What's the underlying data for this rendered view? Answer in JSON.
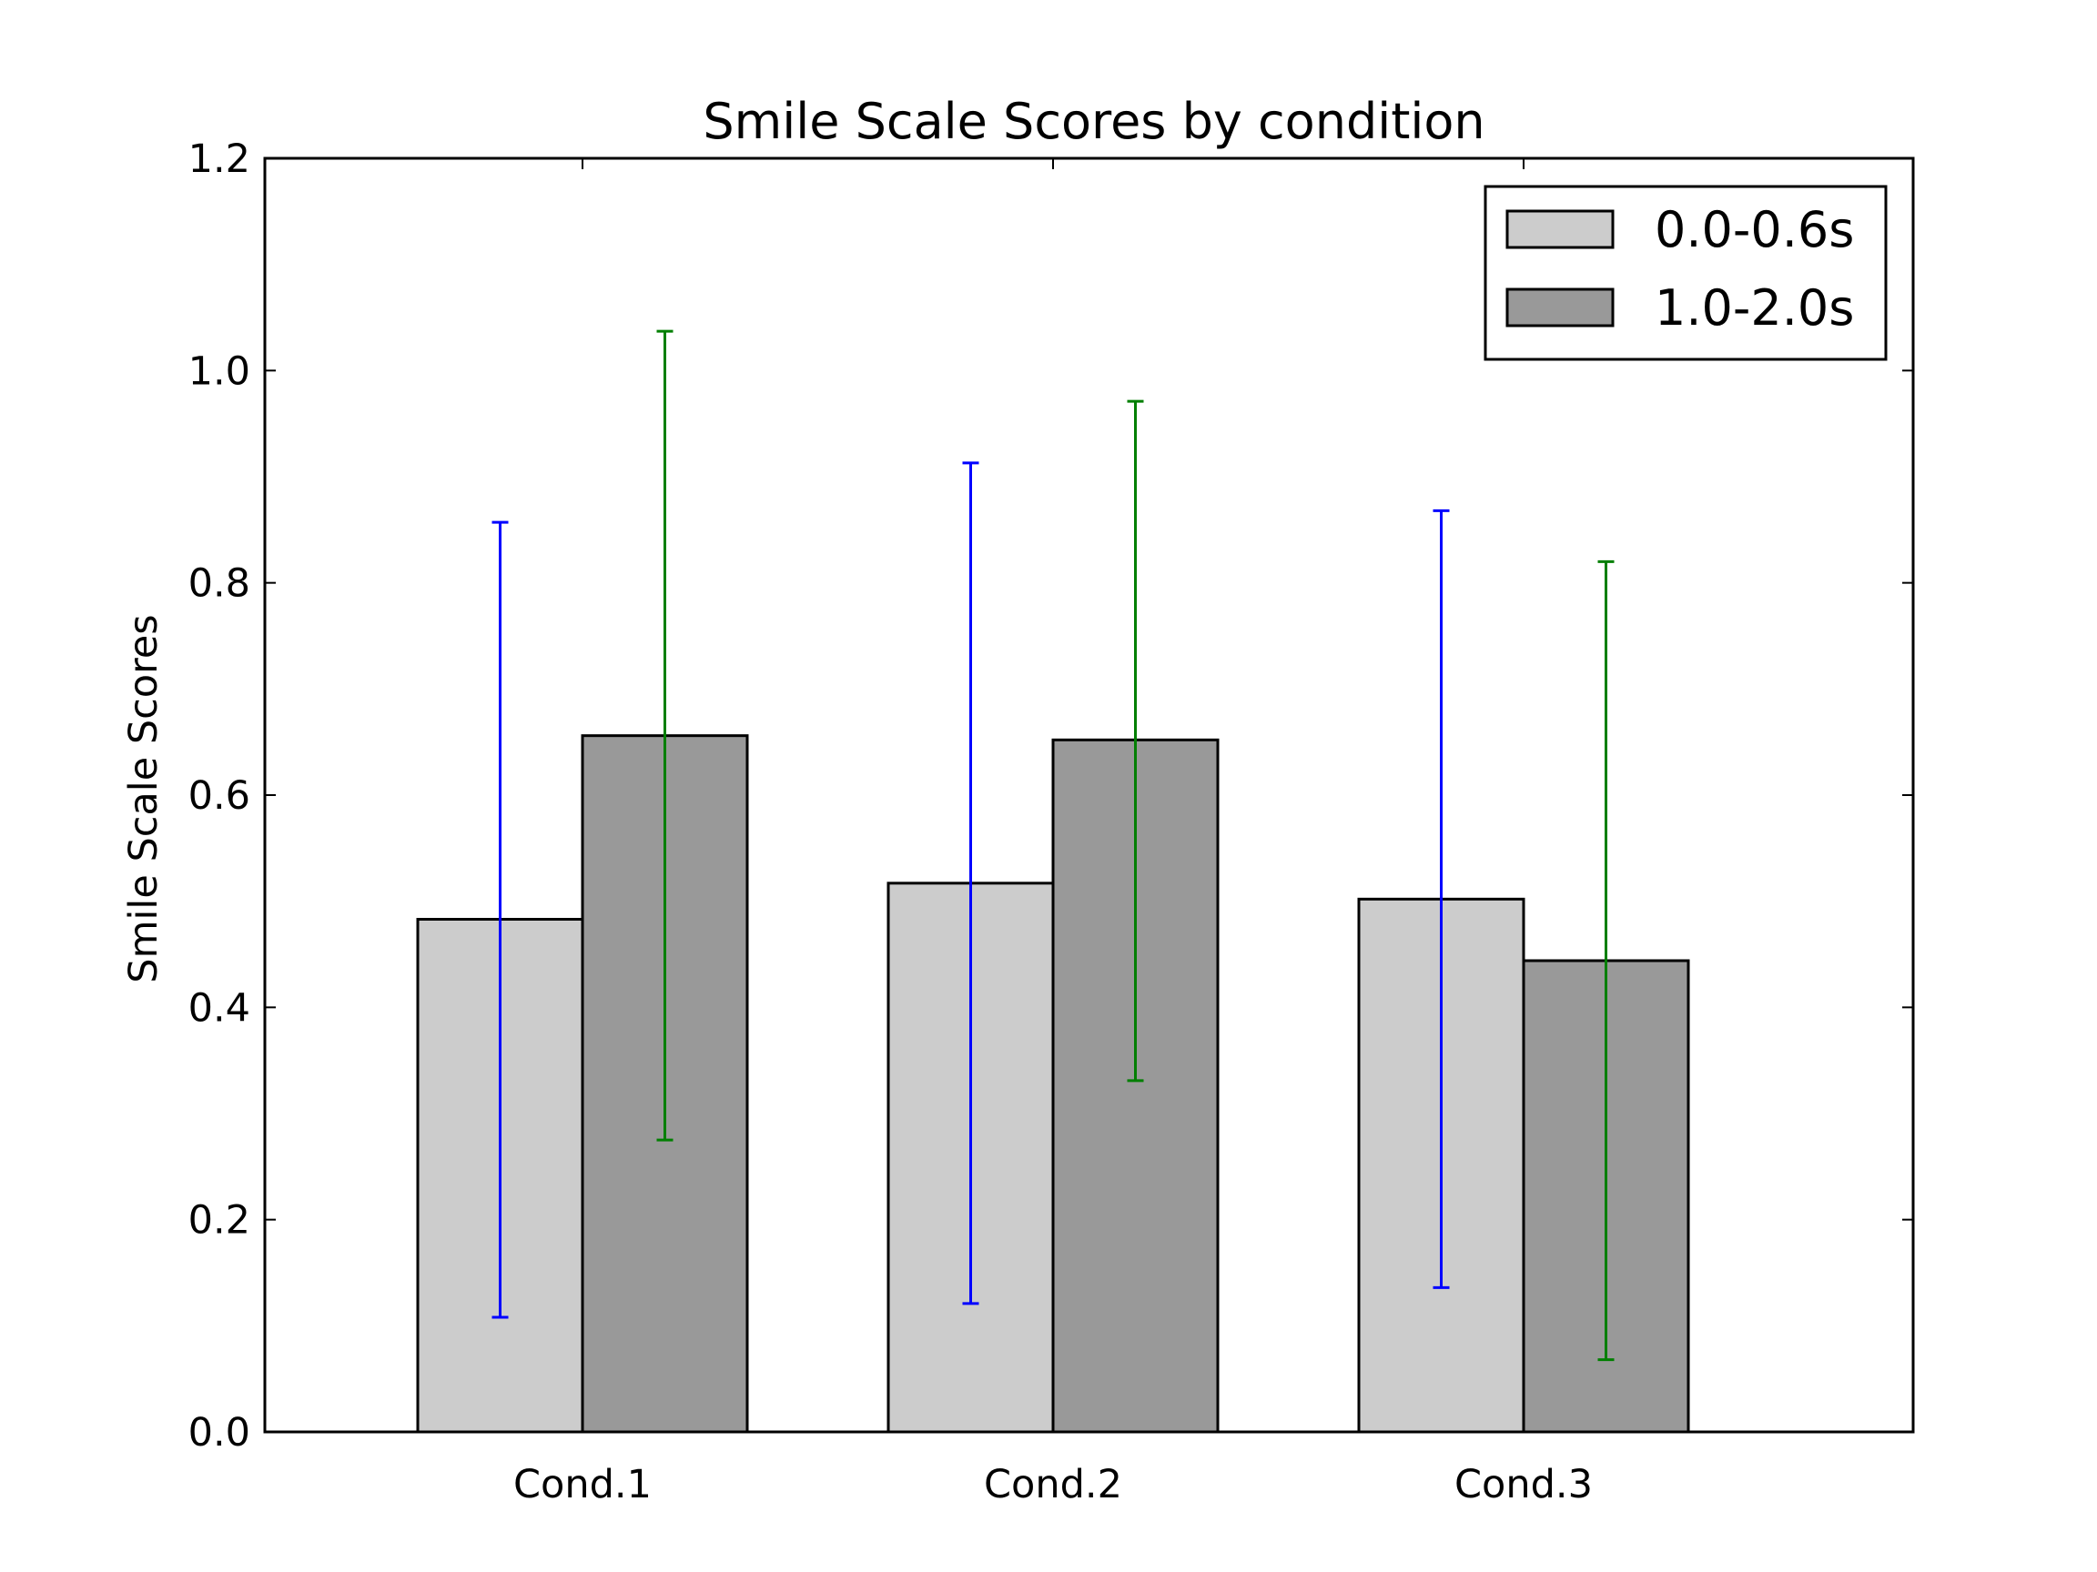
{
  "chart_data": {
    "type": "bar",
    "title": "Smile Scale Scores by condition",
    "xlabel": "",
    "ylabel": "Smile Scale Scores",
    "categories": [
      "Cond.1",
      "Cond.2",
      "Cond.3"
    ],
    "ylim": [
      0.0,
      1.2
    ],
    "yticks": [
      "0.0",
      "0.2",
      "0.4",
      "0.6",
      "0.8",
      "1.0",
      "1.2"
    ],
    "grid": false,
    "legend_position": "top-right",
    "series": [
      {
        "name": "0.0-0.6s",
        "values": [
          0.483,
          0.517,
          0.502
        ],
        "error_low": [
          0.108,
          0.121,
          0.136
        ],
        "error_high": [
          0.857,
          0.913,
          0.868
        ],
        "color": "#cccccc",
        "error_color": "#0000ff"
      },
      {
        "name": "1.0-2.0s",
        "values": [
          0.656,
          0.652,
          0.444
        ],
        "error_low": [
          0.275,
          0.331,
          0.068
        ],
        "error_high": [
          1.037,
          0.971,
          0.82
        ],
        "color": "#999999",
        "error_color": "#007f00"
      }
    ]
  }
}
